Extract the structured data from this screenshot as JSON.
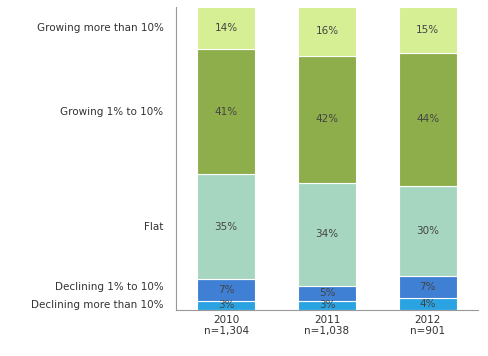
{
  "chart_data": {
    "type": "bar",
    "stacked": true,
    "data_labels": true,
    "tick_labels": "x",
    "categories": [
      "2010\nn=1,304",
      "2011\nn=1,038",
      "2012\nn=901"
    ],
    "ylim": [
      0,
      100
    ],
    "yticks": [],
    "series": [
      {
        "name": "Declining more than 10%",
        "color": "#2aa3e3",
        "values": [
          3,
          3,
          4
        ],
        "value_labels": [
          "3%",
          "3%",
          "4%"
        ]
      },
      {
        "name": "Declining 1% to 10%",
        "color": "#3f7fd4",
        "values": [
          7,
          5,
          7
        ],
        "value_labels": [
          "7%",
          "5%",
          "7%"
        ]
      },
      {
        "name": "Flat",
        "color": "#a6d6c0",
        "values": [
          35,
          34,
          30
        ],
        "value_labels": [
          "35%",
          "34%",
          "30%"
        ]
      },
      {
        "name": "Growing 1% to 10%",
        "color": "#8dae4a",
        "values": [
          41,
          42,
          44
        ],
        "value_labels": [
          "41%",
          "42%",
          "44%"
        ]
      },
      {
        "name": "Growing more than 10%",
        "color": "#d6ee94",
        "values": [
          14,
          16,
          15
        ],
        "value_labels": [
          "14%",
          "16%",
          "15%"
        ]
      }
    ]
  }
}
